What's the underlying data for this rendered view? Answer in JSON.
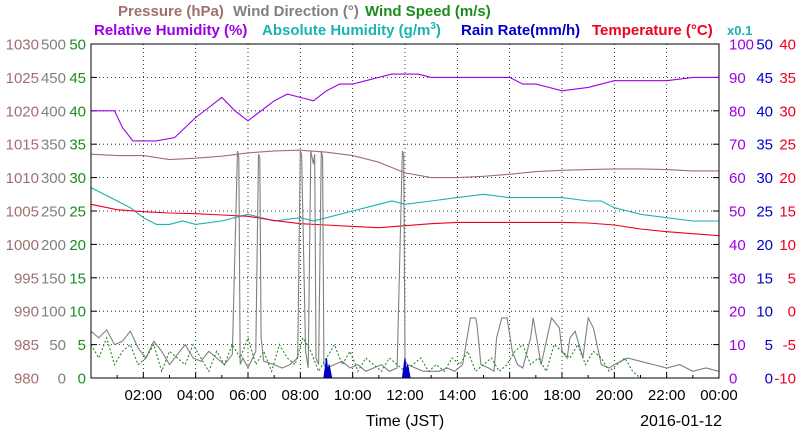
{
  "colors": {
    "pressure": "#a0706e",
    "wind_direction": "#808080",
    "wind_speed": "#1e8c1e",
    "relative_humidity": "#9a00e6",
    "absolute_humidity": "#1ab2b2",
    "rain_rate": "#0000cc",
    "temperature": "#ee0022",
    "grid": "#000000"
  },
  "legend": {
    "pressure": "Pressure (hPa)",
    "wind_direction": "Wind Direction (°)",
    "wind_speed": "Wind Speed (m/s)",
    "relative_humidity": "Relative Humidity (%)",
    "absolute_humidity_main": "Absolute Humidity (g/m",
    "absolute_humidity_sup": "3",
    "absolute_humidity_end": ")",
    "rain_rate": "Rain Rate(mm/h)",
    "temperature": "Temperature (°C)",
    "multiplier": "x0.1"
  },
  "xlabel": "Time (JST)",
  "date_label": "2016-01-12",
  "chart_data": {
    "type": "line",
    "x_ticks": [
      "02:00",
      "04:00",
      "06:00",
      "08:00",
      "10:00",
      "12:00",
      "14:00",
      "16:00",
      "18:00",
      "20:00",
      "22:00",
      "00:00"
    ],
    "x_range_hours": [
      0,
      24
    ],
    "grid": true,
    "axes": {
      "pressure": {
        "ticks": [
          "1030",
          "1025",
          "1020",
          "1015",
          "1010",
          "1005",
          "1000",
          "995",
          "990",
          "985",
          "980"
        ],
        "range": [
          980,
          1030
        ]
      },
      "wind_direction": {
        "ticks": [
          "500",
          "450",
          "400",
          "350",
          "300",
          "250",
          "200",
          "150",
          "100",
          "50",
          "0"
        ],
        "range": [
          0,
          500
        ]
      },
      "wind_speed": {
        "ticks": [
          "50",
          "45",
          "40",
          "35",
          "30",
          "25",
          "20",
          "15",
          "10",
          "5",
          "0"
        ],
        "range": [
          0,
          50
        ]
      },
      "relative_humidity": {
        "ticks": [
          "100",
          "90",
          "80",
          "70",
          "60",
          "50",
          "40",
          "30",
          "20",
          "10",
          "0"
        ],
        "range": [
          0,
          100
        ]
      },
      "rain_rate": {
        "ticks": [
          "50",
          "45",
          "40",
          "35",
          "30",
          "25",
          "20",
          "15",
          "10",
          "5",
          "0"
        ],
        "range": [
          0,
          50
        ]
      },
      "temperature": {
        "ticks": [
          "40",
          "35",
          "30",
          "25",
          "20",
          "15",
          "10",
          "5",
          "0",
          "-5",
          "-10"
        ],
        "range": [
          -10,
          40
        ]
      }
    },
    "series": [
      {
        "key": "relative_humidity",
        "scale": [
          0,
          100
        ],
        "x": [
          0,
          0.9,
          1.2,
          1.6,
          2.5,
          3.2,
          3.6,
          4.0,
          4.5,
          5.0,
          5.5,
          6.0,
          6.5,
          7.0,
          7.5,
          8.0,
          8.5,
          9.0,
          9.5,
          10.0,
          10.5,
          11.0,
          11.5,
          12.0,
          12.5,
          13.0,
          14.0,
          15.0,
          16.0,
          16.5,
          17.0,
          17.5,
          18.0,
          19.0,
          20.0,
          21.0,
          22.0,
          23.0,
          23.5,
          24.0
        ],
        "y": [
          80,
          80,
          75,
          71,
          71,
          72,
          75,
          78,
          81,
          84,
          80,
          77,
          80,
          83,
          85,
          84,
          83,
          86,
          88,
          88,
          89,
          90,
          91,
          91,
          91,
          90,
          90,
          90,
          90,
          88,
          88,
          87,
          86,
          87,
          89,
          89,
          89,
          90,
          90,
          90
        ]
      },
      {
        "key": "pressure",
        "scale": [
          980,
          1030
        ],
        "x": [
          0,
          1,
          2,
          3,
          4,
          5,
          6,
          7,
          8,
          9,
          10,
          11,
          12,
          13,
          14,
          15,
          16,
          17,
          18,
          19,
          20,
          21,
          22,
          23,
          24
        ],
        "y": [
          1013.5,
          1013.3,
          1013.3,
          1012.7,
          1012.9,
          1013.2,
          1013.7,
          1014,
          1014.1,
          1013.8,
          1013.3,
          1012.3,
          1010.7,
          1010.0,
          1010.0,
          1010.2,
          1010.5,
          1010.9,
          1011.1,
          1011.2,
          1011.3,
          1011.3,
          1011.2,
          1011.0,
          1011.0
        ]
      },
      {
        "key": "absolute_humidity",
        "scale": [
          0,
          10
        ],
        "x": [
          0,
          0.5,
          1,
          1.5,
          2,
          2.5,
          3,
          3.5,
          4,
          5,
          6,
          7,
          8,
          8.5,
          9,
          10,
          11,
          11.5,
          12,
          13,
          14,
          15,
          16,
          17,
          18,
          19,
          19.5,
          20,
          21,
          22,
          23,
          24
        ],
        "y": [
          5.7,
          5.5,
          5.3,
          5.1,
          4.8,
          4.6,
          4.6,
          4.7,
          4.6,
          4.7,
          4.9,
          4.7,
          4.8,
          4.7,
          4.8,
          5.0,
          5.2,
          5.3,
          5.2,
          5.3,
          5.4,
          5.5,
          5.4,
          5.4,
          5.4,
          5.3,
          5.3,
          5.1,
          4.9,
          4.8,
          4.7,
          4.7
        ]
      },
      {
        "key": "temperature",
        "scale": [
          -10,
          40
        ],
        "x": [
          0,
          1,
          2,
          3,
          4,
          5,
          6,
          7,
          8,
          9,
          10,
          11,
          12,
          13,
          14,
          15,
          16,
          17,
          18,
          19,
          20,
          21,
          22,
          23,
          24
        ],
        "y": [
          16.0,
          15.2,
          14.9,
          14.7,
          14.6,
          14.4,
          14.2,
          13.6,
          13.1,
          12.9,
          12.7,
          12.5,
          12.8,
          13.1,
          13.3,
          13.3,
          13.3,
          13.3,
          13.3,
          13.2,
          12.9,
          12.3,
          11.9,
          11.6,
          11.3
        ]
      },
      {
        "key": "wind_direction",
        "scale": [
          0,
          500
        ],
        "x": [
          0,
          0.3,
          0.6,
          0.9,
          1.2,
          1.5,
          1.8,
          2.1,
          2.4,
          2.7,
          3.0,
          3.3,
          3.6,
          3.9,
          4.2,
          4.5,
          4.8,
          5.1,
          5.4,
          5.6,
          5.65,
          5.7,
          5.8,
          6.0,
          6.3,
          6.4,
          6.45,
          6.5,
          6.6,
          7.0,
          7.3,
          7.6,
          7.9,
          8.0,
          8.05,
          8.2,
          8.3,
          8.4,
          8.5,
          8.55,
          8.6,
          8.7,
          8.8,
          8.85,
          8.9,
          9.0,
          9.3,
          9.6,
          9.9,
          10.2,
          10.5,
          10.8,
          11.1,
          11.4,
          11.7,
          11.9,
          11.95,
          12.0,
          12.1,
          12.4,
          12.7,
          13.0,
          13.3,
          13.6,
          13.9,
          14.2,
          14.5,
          14.7,
          14.75,
          14.9,
          15.2,
          15.4,
          15.5,
          15.7,
          15.9,
          16.1,
          16.3,
          16.5,
          16.8,
          16.9,
          17.2,
          17.6,
          17.9,
          18.0,
          18.2,
          18.3,
          18.5,
          18.8,
          19.0,
          19.2,
          19.5,
          19.8,
          20.0,
          20.5,
          21,
          21.5,
          22,
          22.5,
          23,
          23.5,
          24
        ],
        "y": [
          70,
          60,
          72,
          50,
          55,
          70,
          45,
          30,
          55,
          40,
          20,
          35,
          50,
          30,
          25,
          40,
          30,
          20,
          35,
          340,
          330,
          20,
          30,
          15,
          40,
          335,
          330,
          60,
          25,
          20,
          15,
          20,
          30,
          340,
          335,
          40,
          15,
          340,
          320,
          335,
          30,
          20,
          340,
          330,
          20,
          15,
          20,
          25,
          15,
          20,
          10,
          15,
          20,
          10,
          15,
          340,
          335,
          25,
          20,
          15,
          10,
          10,
          10,
          15,
          10,
          20,
          90,
          90,
          80,
          20,
          15,
          10,
          60,
          90,
          90,
          40,
          20,
          15,
          60,
          90,
          20,
          90,
          75,
          40,
          30,
          60,
          70,
          30,
          90,
          75,
          20,
          15,
          20,
          30,
          25,
          20,
          15,
          20,
          10,
          15,
          10
        ]
      },
      {
        "key": "wind_speed",
        "scale": [
          0,
          50
        ],
        "dash": "2,2",
        "x": [
          0,
          0.3,
          0.6,
          0.9,
          1.2,
          1.5,
          1.8,
          2.1,
          2.4,
          2.7,
          3.0,
          3.3,
          3.6,
          3.9,
          4.2,
          4.5,
          4.8,
          5.1,
          5.4,
          5.7,
          6.0,
          6.3,
          6.6,
          6.9,
          7.2,
          7.5,
          7.8,
          8.1,
          8.4,
          8.7,
          9.0,
          9.3,
          9.6,
          9.9,
          10.2,
          10.5,
          10.8,
          11.1,
          11.4,
          11.7,
          12.0,
          12.3,
          12.6,
          12.9,
          13.2,
          13.5,
          13.8,
          14.1,
          14.4,
          14.7,
          15.0,
          15.3,
          15.6,
          15.9,
          16.2,
          16.5,
          16.8,
          17.1,
          17.4,
          17.7,
          18.0,
          18.3,
          18.6,
          18.9,
          19.2,
          19.5,
          19.8,
          20.1,
          20.4,
          20.7,
          21.0,
          22,
          23,
          24
        ],
        "y": [
          5,
          3,
          6,
          2,
          4,
          5,
          2,
          3,
          5,
          1,
          4,
          3,
          2,
          5,
          3,
          1,
          4,
          2,
          5,
          3,
          6,
          2,
          4,
          1,
          5,
          3,
          2,
          6,
          4,
          1,
          3,
          5,
          2,
          4,
          1,
          3,
          2,
          1,
          3,
          2,
          1,
          2,
          3,
          1,
          2,
          1,
          3,
          2,
          4,
          1,
          2,
          3,
          1,
          2,
          4,
          5,
          2,
          3,
          1,
          5,
          4,
          3,
          5,
          2,
          4,
          3,
          1,
          2,
          3,
          1,
          0,
          0,
          0,
          0
        ]
      },
      {
        "key": "rain_rate",
        "scale": [
          0,
          50
        ],
        "fill": true,
        "x": [
          0,
          8.9,
          9.0,
          9.05,
          9.1,
          9.2,
          11.9,
          12.0,
          12.05,
          12.1,
          12.2,
          24
        ],
        "y": [
          0,
          0,
          3,
          1,
          2,
          0,
          0,
          3,
          1,
          2,
          0,
          0
        ]
      }
    ]
  }
}
